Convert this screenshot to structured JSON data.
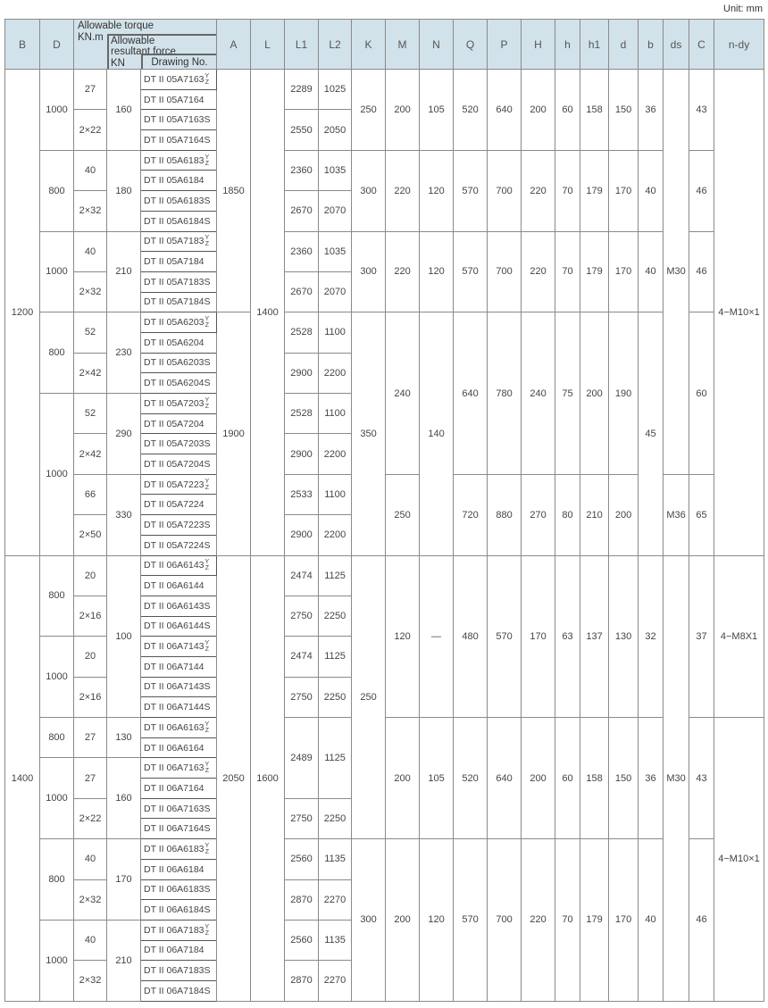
{
  "unit_label": "Unit: mm",
  "header": {
    "B": "B",
    "D": "D",
    "torque_title": "Allowable torque",
    "torque_unit": "KN.m",
    "force_title": "Allowable resultant force",
    "force_unit": "KN",
    "drawing": "Drawing No.",
    "rest": [
      "A",
      "L",
      "L1",
      "L2",
      "K",
      "M",
      "N",
      "Q",
      "P",
      "H",
      "h",
      "h1",
      "d",
      "b",
      "ds",
      "C",
      "n-dy"
    ]
  },
  "columns": [
    {
      "key": "B",
      "runs": [
        [
          "1200",
          24
        ],
        [
          "1400",
          22
        ]
      ]
    },
    {
      "key": "D",
      "runs": [
        [
          "1000",
          4
        ],
        [
          "800",
          4
        ],
        [
          "1000",
          4
        ],
        [
          "800",
          4
        ],
        [
          "1000",
          8
        ],
        [
          "800",
          4
        ],
        [
          "1000",
          4
        ],
        [
          "800",
          2
        ],
        [
          "1000",
          4
        ],
        [
          "800",
          4
        ],
        [
          "1000",
          4
        ]
      ]
    },
    {
      "key": "torque",
      "runs": [
        [
          "27",
          2
        ],
        [
          "2×22",
          2
        ],
        [
          "40",
          2
        ],
        [
          "2×32",
          2
        ],
        [
          "40",
          2
        ],
        [
          "2×32",
          2
        ],
        [
          "52",
          2
        ],
        [
          "2×42",
          2
        ],
        [
          "52",
          2
        ],
        [
          "2×42",
          2
        ],
        [
          "66",
          2
        ],
        [
          "2×50",
          2
        ],
        [
          "20",
          2
        ],
        [
          "2×16",
          2
        ],
        [
          "20",
          2
        ],
        [
          "2×16",
          2
        ],
        [
          "27",
          2
        ],
        [
          "27",
          2
        ],
        [
          "2×22",
          2
        ],
        [
          "40",
          2
        ],
        [
          "2×32",
          2
        ],
        [
          "40",
          2
        ],
        [
          "2×32",
          2
        ]
      ]
    },
    {
      "key": "force",
      "runs": [
        [
          "160",
          4
        ],
        [
          "180",
          4
        ],
        [
          "210",
          4
        ],
        [
          "230",
          4
        ],
        [
          "290",
          4
        ],
        [
          "330",
          4
        ],
        [
          "100",
          8
        ],
        [
          "130",
          2
        ],
        [
          "160",
          4
        ],
        [
          "170",
          4
        ],
        [
          "210",
          4
        ]
      ]
    },
    {
      "key": "drawing",
      "items": [
        {
          "no": "DT II 05A7163",
          "sup": "Y",
          "sub": "Z"
        },
        {
          "no": "DT II 05A7164"
        },
        {
          "no": "DT II 05A7163S"
        },
        {
          "no": "DT II 05A7164S"
        },
        {
          "no": "DT II 05A6183",
          "sup": "Y",
          "sub": "Z"
        },
        {
          "no": "DT II 05A6184"
        },
        {
          "no": "DT II 05A6183S"
        },
        {
          "no": "DT II 05A6184S"
        },
        {
          "no": "DT II 05A7183",
          "sup": "Y",
          "sub": "Z"
        },
        {
          "no": "DT II 05A7184"
        },
        {
          "no": "DT II 05A7183S"
        },
        {
          "no": "DT II 05A7184S"
        },
        {
          "no": "DT II 05A6203",
          "sup": "Y",
          "sub": "Z"
        },
        {
          "no": "DT II 05A6204"
        },
        {
          "no": "DT II 05A6203S"
        },
        {
          "no": "DT II 05A6204S"
        },
        {
          "no": "DT II 05A7203",
          "sup": "Y",
          "sub": "Z"
        },
        {
          "no": "DT II 05A7204"
        },
        {
          "no": "DT II 05A7203S"
        },
        {
          "no": "DT II 05A7204S"
        },
        {
          "no": "DT II 05A7223",
          "sup": "Y",
          "sub": "Z"
        },
        {
          "no": "DT II 05A7224"
        },
        {
          "no": "DT II 05A7223S"
        },
        {
          "no": "DT II 05A7224S"
        },
        {
          "no": "DT II 06A6143",
          "sup": "Y",
          "sub": "Z"
        },
        {
          "no": "DT II 06A6144"
        },
        {
          "no": "DT II 06A6143S"
        },
        {
          "no": "DT II 06A6144S"
        },
        {
          "no": "DT II 06A7143",
          "sup": "Y",
          "sub": "Z"
        },
        {
          "no": "DT II 06A7144"
        },
        {
          "no": "DT II 06A7143S"
        },
        {
          "no": "DT II 06A7144S"
        },
        {
          "no": "DT II 06A6163",
          "sup": "Y",
          "sub": "Z"
        },
        {
          "no": "DT II 06A6164"
        },
        {
          "no": "DT II 06A7163",
          "sup": "Y",
          "sub": "Z"
        },
        {
          "no": "DT II 06A7164"
        },
        {
          "no": "DT II 06A7163S"
        },
        {
          "no": "DT II 06A7164S"
        },
        {
          "no": "DT II 06A6183",
          "sup": "Y",
          "sub": "Z"
        },
        {
          "no": "DT II 06A6184"
        },
        {
          "no": "DT II 06A6183S"
        },
        {
          "no": "DT II 06A6184S"
        },
        {
          "no": "DT II 06A7183",
          "sup": "Y",
          "sub": "Z"
        },
        {
          "no": "DT II 06A7184"
        },
        {
          "no": "DT II 06A7183S"
        },
        {
          "no": "DT II 06A7184S"
        }
      ]
    },
    {
      "key": "A",
      "runs": [
        [
          "1850",
          12
        ],
        [
          "1900",
          12
        ],
        [
          "2050",
          22
        ]
      ]
    },
    {
      "key": "L",
      "runs": [
        [
          "1400",
          24
        ],
        [
          "1600",
          22
        ]
      ]
    },
    {
      "key": "L1",
      "runs": [
        [
          "2289",
          2
        ],
        [
          "2550",
          2
        ],
        [
          "2360",
          2
        ],
        [
          "2670",
          2
        ],
        [
          "2360",
          2
        ],
        [
          "2670",
          2
        ],
        [
          "2528",
          2
        ],
        [
          "2900",
          2
        ],
        [
          "2528",
          2
        ],
        [
          "2900",
          2
        ],
        [
          "2533",
          2
        ],
        [
          "2900",
          2
        ],
        [
          "2474",
          2
        ],
        [
          "2750",
          2
        ],
        [
          "2474",
          2
        ],
        [
          "2750",
          2
        ],
        [
          "2489",
          4
        ],
        [
          "2750",
          2
        ],
        [
          "2560",
          2
        ],
        [
          "2870",
          2
        ],
        [
          "2560",
          2
        ],
        [
          "2870",
          2
        ]
      ]
    },
    {
      "key": "L2",
      "runs": [
        [
          "1025",
          2
        ],
        [
          "2050",
          2
        ],
        [
          "1035",
          2
        ],
        [
          "2070",
          2
        ],
        [
          "1035",
          2
        ],
        [
          "2070",
          2
        ],
        [
          "1100",
          2
        ],
        [
          "2200",
          2
        ],
        [
          "1100",
          2
        ],
        [
          "2200",
          2
        ],
        [
          "1100",
          2
        ],
        [
          "2200",
          2
        ],
        [
          "1125",
          2
        ],
        [
          "2250",
          2
        ],
        [
          "1125",
          2
        ],
        [
          "2250",
          2
        ],
        [
          "1125",
          4
        ],
        [
          "2250",
          2
        ],
        [
          "1135",
          2
        ],
        [
          "2270",
          2
        ],
        [
          "1135",
          2
        ],
        [
          "2270",
          2
        ]
      ]
    },
    {
      "key": "K",
      "runs": [
        [
          "250",
          4
        ],
        [
          "300",
          4
        ],
        [
          "300",
          4
        ],
        [
          "350",
          12
        ],
        [
          "250",
          14
        ],
        [
          "300",
          8
        ]
      ]
    },
    {
      "key": "M",
      "runs": [
        [
          "200",
          4
        ],
        [
          "220",
          4
        ],
        [
          "220",
          4
        ],
        [
          "240",
          8
        ],
        [
          "250",
          4
        ],
        [
          "120",
          8
        ],
        [
          "200",
          6
        ],
        [
          "200",
          8
        ]
      ]
    },
    {
      "key": "N",
      "runs": [
        [
          "105",
          4
        ],
        [
          "120",
          4
        ],
        [
          "120",
          4
        ],
        [
          "140",
          12
        ],
        [
          "—",
          8
        ],
        [
          "105",
          6
        ],
        [
          "120",
          8
        ]
      ]
    },
    {
      "key": "Q",
      "runs": [
        [
          "520",
          4
        ],
        [
          "570",
          4
        ],
        [
          "570",
          4
        ],
        [
          "640",
          8
        ],
        [
          "720",
          4
        ],
        [
          "480",
          8
        ],
        [
          "520",
          6
        ],
        [
          "570",
          8
        ]
      ]
    },
    {
      "key": "P",
      "runs": [
        [
          "640",
          4
        ],
        [
          "700",
          4
        ],
        [
          "700",
          4
        ],
        [
          "780",
          8
        ],
        [
          "880",
          4
        ],
        [
          "570",
          8
        ],
        [
          "640",
          6
        ],
        [
          "700",
          8
        ]
      ]
    },
    {
      "key": "H",
      "runs": [
        [
          "200",
          4
        ],
        [
          "220",
          4
        ],
        [
          "220",
          4
        ],
        [
          "240",
          8
        ],
        [
          "270",
          4
        ],
        [
          "170",
          8
        ],
        [
          "200",
          6
        ],
        [
          "220",
          8
        ]
      ]
    },
    {
      "key": "h",
      "runs": [
        [
          "60",
          4
        ],
        [
          "70",
          4
        ],
        [
          "70",
          4
        ],
        [
          "75",
          8
        ],
        [
          "80",
          4
        ],
        [
          "63",
          8
        ],
        [
          "60",
          6
        ],
        [
          "70",
          8
        ]
      ]
    },
    {
      "key": "h1",
      "runs": [
        [
          "158",
          4
        ],
        [
          "179",
          4
        ],
        [
          "179",
          4
        ],
        [
          "200",
          8
        ],
        [
          "210",
          4
        ],
        [
          "137",
          8
        ],
        [
          "158",
          6
        ],
        [
          "179",
          8
        ]
      ]
    },
    {
      "key": "d",
      "runs": [
        [
          "150",
          4
        ],
        [
          "170",
          4
        ],
        [
          "170",
          4
        ],
        [
          "190",
          8
        ],
        [
          "200",
          4
        ],
        [
          "130",
          8
        ],
        [
          "150",
          6
        ],
        [
          "170",
          8
        ]
      ]
    },
    {
      "key": "b",
      "runs": [
        [
          "36",
          4
        ],
        [
          "40",
          4
        ],
        [
          "40",
          4
        ],
        [
          "45",
          12
        ],
        [
          "32",
          8
        ],
        [
          "36",
          6
        ],
        [
          "40",
          8
        ]
      ]
    },
    {
      "key": "ds",
      "runs": [
        [
          "M30",
          20
        ],
        [
          "M36",
          4
        ],
        [
          "M30",
          22
        ]
      ]
    },
    {
      "key": "C",
      "runs": [
        [
          "43",
          4
        ],
        [
          "46",
          4
        ],
        [
          "46",
          4
        ],
        [
          "60",
          8
        ],
        [
          "65",
          4
        ],
        [
          "37",
          8
        ],
        [
          "43",
          6
        ],
        [
          "46",
          8
        ]
      ]
    },
    {
      "key": "n-dy",
      "runs": [
        [
          "4−M10×1",
          24
        ],
        [
          "4−M8X1",
          8
        ],
        [
          "4−M10×1",
          14
        ]
      ]
    }
  ]
}
